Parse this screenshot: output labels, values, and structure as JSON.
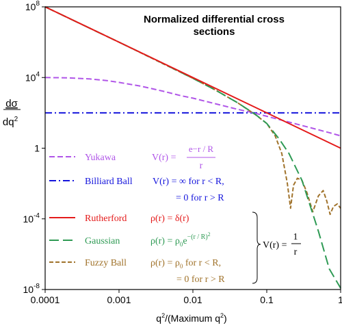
{
  "chart_data": {
    "type": "line",
    "title": "Normalized differential cross sections",
    "title_lines": [
      "Normalized differential cross",
      "sections"
    ],
    "xlabel": "q²/(Maximum q²)",
    "xlabel_parts": {
      "q": "q",
      "exp": "2",
      "rest": "/(Maximum q",
      "exp2": "2",
      "close": ")"
    },
    "ylabel": "dσ / dq²",
    "ylabel_parts": {
      "top": "dσ",
      "bottom": "dq",
      "exp": "2"
    },
    "x_scale": "log",
    "y_scale": "log",
    "xlim": [
      0.0001,
      1
    ],
    "ylim": [
      1e-08,
      100000000.0
    ],
    "x_ticks": [
      {
        "value": 0.0001,
        "label": "0.0001"
      },
      {
        "value": 0.001,
        "label": "0.001"
      },
      {
        "value": 0.01,
        "label": "0.01"
      },
      {
        "value": 0.1,
        "label": "0.1"
      },
      {
        "value": 1,
        "label": "1"
      }
    ],
    "y_ticks": [
      {
        "value": 100000000.0,
        "base": "10",
        "exp": "8"
      },
      {
        "value": 10000.0,
        "base": "10",
        "exp": "4"
      },
      {
        "value": 1,
        "base": "1",
        "exp": ""
      },
      {
        "value": 0.0001,
        "base": "10",
        "exp": "-4"
      },
      {
        "value": 1e-08,
        "base": "10",
        "exp": "-8"
      }
    ],
    "grid": false,
    "legend_position": "lower-left inside plot",
    "series": [
      {
        "name": "Yukawa",
        "color": "#b055e8",
        "dash": "dash",
        "x": [
          0.0001,
          0.0002,
          0.0004,
          0.0007,
          0.001,
          0.002,
          0.004,
          0.007,
          0.01,
          0.02,
          0.04,
          0.07,
          0.1,
          0.2,
          0.4,
          0.7,
          1
        ],
        "y": [
          10000,
          9600,
          8300,
          6600,
          5300,
          3200,
          1650,
          920,
          680,
          330,
          160,
          95,
          64,
          30,
          14,
          7.6,
          5
        ]
      },
      {
        "name": "Billiard Ball",
        "color": "#1414dc",
        "dash": "dashdot",
        "x": [
          0.0001,
          1
        ],
        "y": [
          100,
          100
        ]
      },
      {
        "name": "Rutherford",
        "color": "#e41a1a",
        "dash": "solid",
        "x": [
          0.0001,
          0.001,
          0.01,
          0.1,
          1
        ],
        "y": [
          100000000,
          1000000,
          10000,
          100,
          1
        ]
      },
      {
        "name": "Gaussian",
        "color": "#2e9a54",
        "dash": "longdash",
        "x": [
          0.0001,
          0.0003,
          0.001,
          0.003,
          0.01,
          0.02,
          0.04,
          0.07,
          0.1,
          0.15,
          0.2,
          0.3,
          0.5,
          0.7,
          1
        ],
        "y": [
          100000000,
          11000000,
          1000000,
          110000,
          9000,
          2000,
          380,
          82,
          25,
          3,
          0.5,
          0.015,
          2e-05,
          1.5e-07,
          1.2e-08
        ]
      },
      {
        "name": "Fuzzy Ball",
        "color": "#a0722a",
        "dash": "shortdash",
        "x": [
          0.0001,
          0.001,
          0.01,
          0.02,
          0.04,
          0.07,
          0.1,
          0.13,
          0.16,
          0.19,
          0.21,
          0.23,
          0.26,
          0.3,
          0.35,
          0.42,
          0.5,
          0.58,
          0.65,
          0.72,
          0.8,
          0.9,
          1
        ],
        "y": [
          100000000,
          1000000,
          9000,
          2000,
          380,
          80,
          25,
          5,
          0.5,
          0.01,
          0.0004,
          0.008,
          0.02,
          0.015,
          0.003,
          0.00025,
          0.002,
          0.004,
          0.001,
          0.00018,
          0.0005,
          0.0007,
          0.0004
        ]
      }
    ]
  },
  "legend": {
    "yukawa": {
      "label": "Yukawa",
      "lhs": "V(r) = ",
      "num": "e−r / R",
      "den": "r"
    },
    "billiard": {
      "label": "Billiard Ball",
      "line1": "V(r) = ∞  for  r < R,",
      "line2": "= 0  for  r > R"
    },
    "rutherford": {
      "label": "Rutherford",
      "formula": "ρ(r) = δ(r)"
    },
    "gaussian": {
      "label": "Gaussian",
      "lhs": "ρ(r) = ρ",
      "sub": "0",
      "e": "e",
      "exp": "−(r / R)",
      "exp2": "2"
    },
    "fuzzy": {
      "label": "Fuzzy Ball",
      "lhs": "ρ(r) = ρ",
      "sub": "0",
      "rest": "  for  r < R,",
      "line2": "= 0  for  r > R"
    },
    "potential": {
      "lhs": "V(r) = ",
      "num": "1",
      "den": "r"
    }
  }
}
